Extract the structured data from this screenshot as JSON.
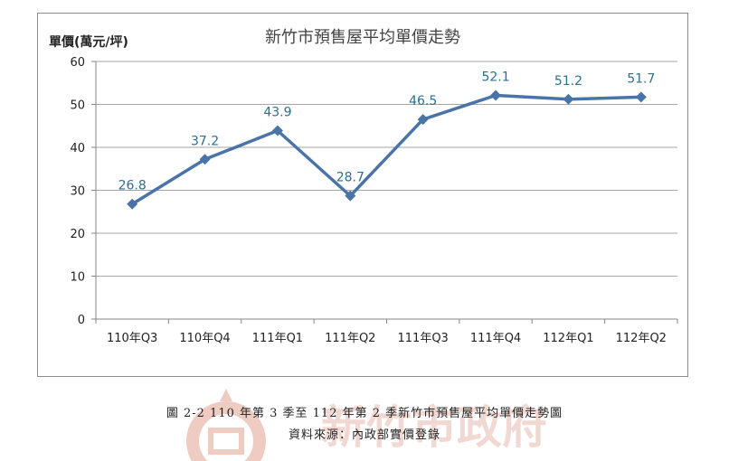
{
  "chart_data": {
    "type": "line",
    "title": "新竹市預售屋平均單價走勢",
    "ylabel": "單價(萬元/坪)",
    "xlabel": "",
    "categories": [
      "110年Q3",
      "110年Q4",
      "111年Q1",
      "111年Q2",
      "111年Q3",
      "111年Q4",
      "112年Q1",
      "112年Q2"
    ],
    "series": [
      {
        "values": [
          26.8,
          37.2,
          43.9,
          28.7,
          46.5,
          52.1,
          51.2,
          51.7
        ]
      }
    ],
    "data_labels": [
      "26.8",
      "37.2",
      "43.9",
      "28.7",
      "46.5",
      "52.1",
      "51.2",
      "51.7"
    ],
    "ylim": [
      0,
      60
    ],
    "yticks": [
      0,
      10,
      20,
      30,
      40,
      50,
      60
    ],
    "grid": true,
    "legend": "none",
    "colors": {
      "line": "#4a74a8",
      "label": "#2e6e8e",
      "grid": "#a6a6a6",
      "axis": "#868686"
    }
  },
  "caption": {
    "line1": "圖 2-2  110 年第 3 季至 112 年第 2 季新竹市預售屋平均單價走勢圖",
    "line2": "資料來源：內政部實價登錄"
  },
  "watermark": {
    "text": "新竹市政府",
    "color": "#e6b3a6"
  }
}
